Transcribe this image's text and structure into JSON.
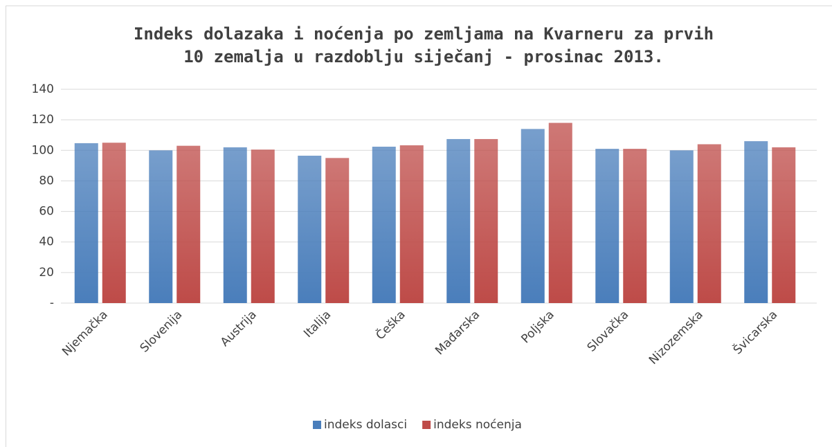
{
  "chart_data": {
    "type": "bar",
    "title": [
      "Indeks dolazaka i noćenja po zemljama na Kvarneru za prvih",
      "10 zemalja u razdoblju siječanj - prosinac 2013."
    ],
    "categories": [
      "Njemačka",
      "Slovenija",
      "Austrija",
      "Italija",
      "Češka",
      "Mađarska",
      "Poljska",
      "Slovačka",
      "Nizozemska",
      "Švicarska"
    ],
    "series": [
      {
        "name": "indeks dolasci",
        "color": "#4a7ebb",
        "values": [
          104.7,
          100,
          102,
          96.5,
          102.4,
          107.4,
          114,
          101,
          100,
          106
        ]
      },
      {
        "name": "indeks noćenja",
        "color": "#be4b48",
        "values": [
          105,
          103,
          100.5,
          95,
          103.3,
          107.4,
          118,
          101,
          104,
          102
        ]
      }
    ],
    "ylim": [
      0,
      140
    ],
    "yticks": [
      {
        "value": 0,
        "label": "-"
      },
      20,
      40,
      60,
      80,
      100,
      120,
      140
    ],
    "grid": true,
    "legend": "bottom"
  }
}
